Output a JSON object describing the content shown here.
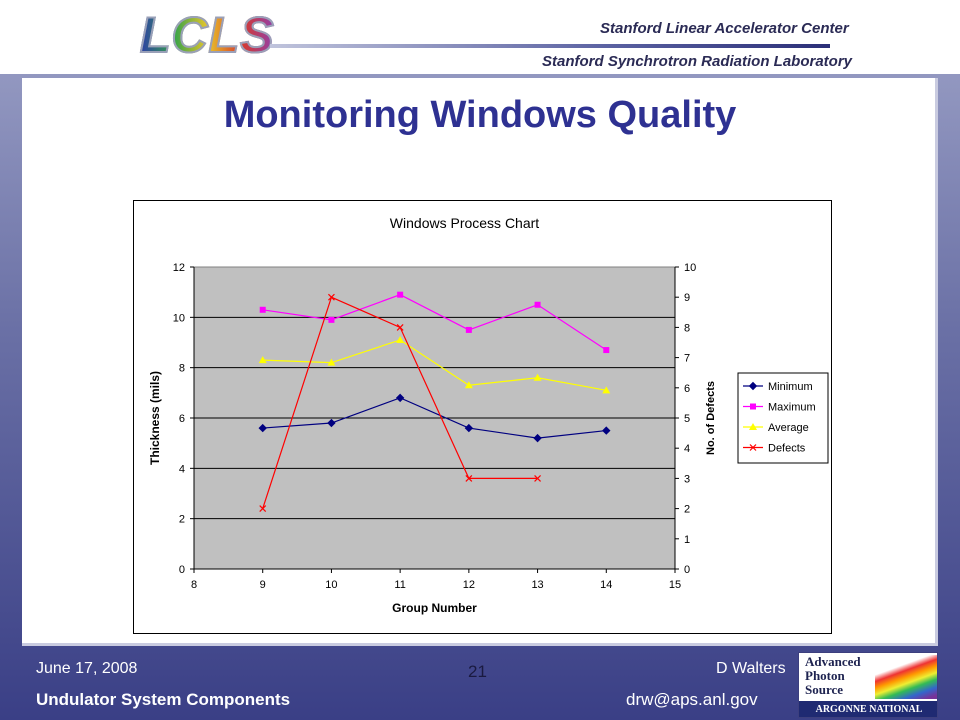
{
  "header": {
    "logo": "LCLS",
    "org_line_1": "Stanford Linear Accelerator Center",
    "org_line_2": "Stanford Synchrotron Radiation Laboratory"
  },
  "slide": {
    "title": "Monitoring Windows Quality"
  },
  "chart_data": {
    "type": "line",
    "title": "Windows Process Chart",
    "xlabel": "Group Number",
    "ylabel_left": "Thickness (mils)",
    "ylabel_right": "No. of Defects",
    "xlim": [
      8,
      15
    ],
    "ylim_left": [
      0,
      12
    ],
    "ylim_right": [
      0,
      10
    ],
    "x_ticks": [
      8,
      9,
      10,
      11,
      12,
      13,
      14,
      15
    ],
    "y_ticks_left": [
      0,
      2,
      4,
      6,
      8,
      10,
      12
    ],
    "y_ticks_right": [
      0,
      1,
      2,
      3,
      4,
      5,
      6,
      7,
      8,
      9,
      10
    ],
    "grid": "horizontal",
    "plot_background": "#c0c0c0",
    "legend_position": "right",
    "series": [
      {
        "name": "Minimum",
        "axis": "left",
        "color": "#000080",
        "marker": "diamond",
        "x": [
          9,
          10,
          11,
          12,
          13,
          14
        ],
        "values": [
          5.6,
          5.8,
          6.8,
          5.6,
          5.2,
          5.5
        ]
      },
      {
        "name": "Maximum",
        "axis": "left",
        "color": "#ff00ff",
        "marker": "square",
        "x": [
          9,
          10,
          11,
          12,
          13,
          14
        ],
        "values": [
          10.3,
          9.9,
          10.9,
          9.5,
          10.5,
          8.7
        ]
      },
      {
        "name": "Average",
        "axis": "left",
        "color": "#ffff00",
        "marker": "triangle",
        "x": [
          9,
          10,
          11,
          12,
          13,
          14
        ],
        "values": [
          8.3,
          8.2,
          9.1,
          7.3,
          7.6,
          7.1
        ]
      },
      {
        "name": "Defects",
        "axis": "right",
        "color": "#ff0000",
        "marker": "x",
        "x": [
          9,
          10,
          11,
          12,
          13
        ],
        "values": [
          2,
          9,
          8,
          3,
          3
        ]
      }
    ]
  },
  "footer": {
    "date": "June 17, 2008",
    "page": "21",
    "author": "D Walters",
    "subject": "Undulator System Components",
    "email": "drw@aps.anl.gov"
  },
  "aps_logo": {
    "line_1": "Advanced",
    "line_2": "Photon",
    "line_3": "Source",
    "lab": "ARGONNE NATIONAL LABORATORY"
  }
}
